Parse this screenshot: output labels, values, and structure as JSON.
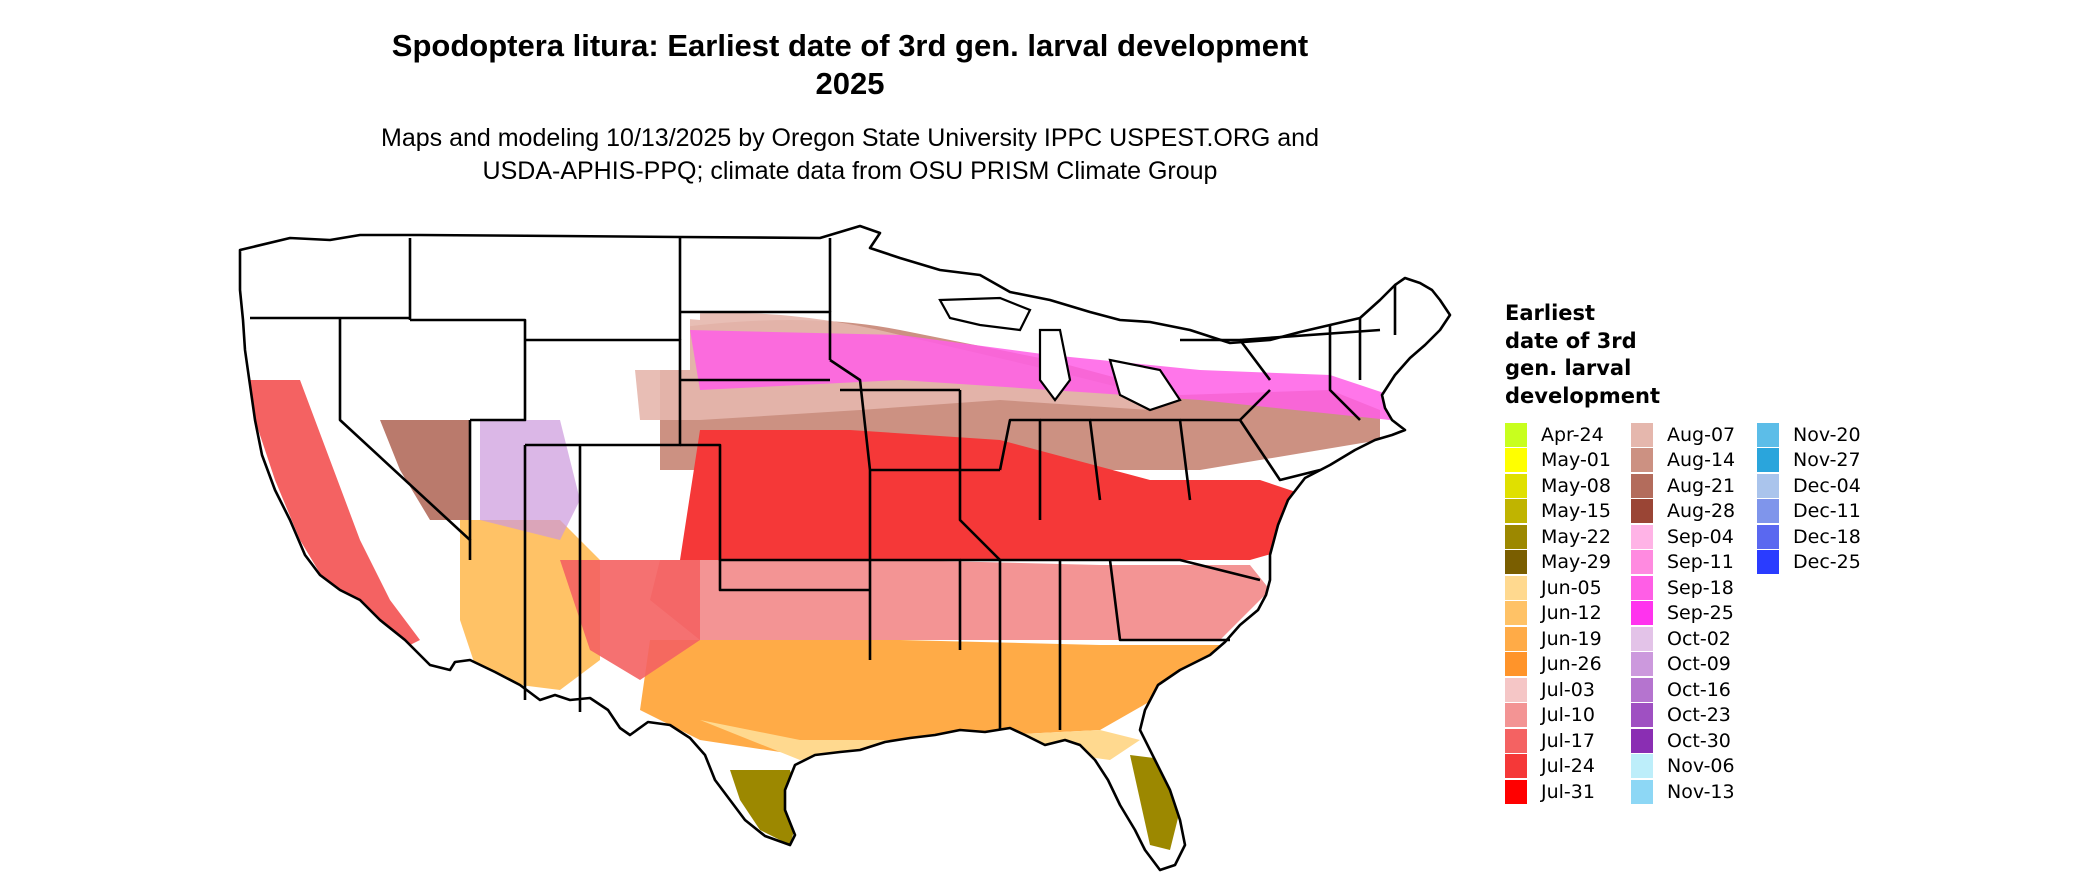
{
  "title": {
    "line1": "Spodoptera litura: Earliest date of 3rd gen. larval development",
    "line2": "2025"
  },
  "subtitle": {
    "line1": "Maps and modeling 10/13/2025 by Oregon State University IPPC USPEST.ORG and",
    "line2": "USDA-APHIS-PPQ; climate data from OSU PRISM Climate Group"
  },
  "legend": {
    "title_lines": [
      "Earliest",
      "date of 3rd",
      "gen. larval",
      "development"
    ],
    "entries": [
      {
        "label": "Apr-24",
        "color": "#c8ff1e"
      },
      {
        "label": "May-01",
        "color": "#ffff00"
      },
      {
        "label": "May-08",
        "color": "#e0e000"
      },
      {
        "label": "May-15",
        "color": "#c0b400"
      },
      {
        "label": "May-22",
        "color": "#9c8800"
      },
      {
        "label": "May-29",
        "color": "#7a5e00"
      },
      {
        "label": "Jun-05",
        "color": "#ffd98f"
      },
      {
        "label": "Jun-12",
        "color": "#ffc266"
      },
      {
        "label": "Jun-19",
        "color": "#ffab47"
      },
      {
        "label": "Jun-26",
        "color": "#ff942a"
      },
      {
        "label": "Jul-03",
        "color": "#f5c6c6"
      },
      {
        "label": "Jul-10",
        "color": "#f39494"
      },
      {
        "label": "Jul-17",
        "color": "#f46262"
      },
      {
        "label": "Jul-24",
        "color": "#f53838"
      },
      {
        "label": "Jul-31",
        "color": "#ff0000"
      },
      {
        "label": "Aug-07",
        "color": "#e5b7ad"
      },
      {
        "label": "Aug-14",
        "color": "#cc9182"
      },
      {
        "label": "Aug-21",
        "color": "#b36c5c"
      },
      {
        "label": "Aug-28",
        "color": "#9a4535"
      },
      {
        "label": "Sep-04",
        "color": "#ffb3e6"
      },
      {
        "label": "Sep-11",
        "color": "#ff8ae0"
      },
      {
        "label": "Sep-18",
        "color": "#ff5ee6"
      },
      {
        "label": "Sep-25",
        "color": "#ff33ee"
      },
      {
        "label": "Oct-02",
        "color": "#e3c3e8"
      },
      {
        "label": "Oct-09",
        "color": "#cc99dd"
      },
      {
        "label": "Oct-16",
        "color": "#b574cf"
      },
      {
        "label": "Oct-23",
        "color": "#9f50c2"
      },
      {
        "label": "Oct-30",
        "color": "#8a2eb3"
      },
      {
        "label": "Nov-06",
        "color": "#bdeefa"
      },
      {
        "label": "Nov-13",
        "color": "#8dd7f5"
      },
      {
        "label": "Nov-20",
        "color": "#5cbde8"
      },
      {
        "label": "Nov-27",
        "color": "#2aa5dc"
      },
      {
        "label": "Dec-04",
        "color": "#aac4ec"
      },
      {
        "label": "Dec-11",
        "color": "#7f95eb"
      },
      {
        "label": "Dec-18",
        "color": "#5a68f0"
      },
      {
        "label": "Dec-25",
        "color": "#2a3cff"
      }
    ]
  }
}
